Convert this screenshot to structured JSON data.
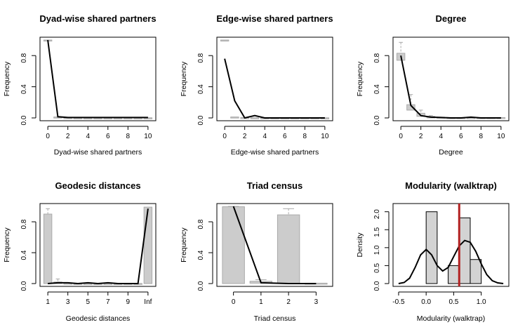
{
  "chart_data": [
    {
      "type": "bar",
      "title": "Dyad-wise shared partners",
      "xlabel": "Dyad-wise shared partners",
      "ylabel": "Frequency",
      "xlim": [
        -0.5,
        10.5
      ],
      "ylim": [
        0,
        1.0
      ],
      "x_ticks": [
        "0",
        "2",
        "4",
        "6",
        "8",
        "10"
      ],
      "y_ticks": [
        "0.0",
        "0.4",
        "0.8"
      ],
      "x": [
        0,
        1,
        2,
        3,
        4,
        5,
        6,
        7,
        8,
        9,
        10
      ],
      "boxes": [
        [
          0.99,
          1.0
        ],
        [
          0.0,
          0.012
        ],
        [
          0.0,
          0.005
        ],
        [
          0.0,
          0.003
        ],
        [
          0.0,
          0.002
        ],
        [
          0.0,
          0.002
        ],
        [
          0.0,
          0.002
        ],
        [
          0.0,
          0.002
        ],
        [
          0.0,
          0.002
        ],
        [
          0.0,
          0.002
        ],
        [
          0.0,
          0.002
        ]
      ],
      "observed": [
        1.0,
        0.015,
        0.005,
        0.005,
        0.005,
        0.005,
        0.005,
        0.005,
        0.005,
        0.005,
        0.005
      ]
    },
    {
      "type": "bar",
      "title": "Edge-wise shared partners",
      "xlabel": "Edge-wise shared partners",
      "ylabel": "Frequency",
      "xlim": [
        -0.5,
        10.5
      ],
      "ylim": [
        0,
        1.0
      ],
      "x_ticks": [
        "0",
        "2",
        "4",
        "6",
        "8",
        "10"
      ],
      "y_ticks": [
        "0.0",
        "0.4",
        "0.8"
      ],
      "x": [
        0,
        1,
        2,
        3,
        4,
        5,
        6,
        7,
        8,
        9,
        10
      ],
      "boxes": [
        [
          0.99,
          1.0
        ],
        [
          0.0,
          0.012
        ],
        [
          0.0,
          0.005
        ],
        [
          0.0,
          0.003
        ],
        [
          0.0,
          0.002
        ],
        [
          0.0,
          0.002
        ],
        [
          0.0,
          0.002
        ],
        [
          0.0,
          0.002
        ],
        [
          0.0,
          0.002
        ],
        [
          0.0,
          0.002
        ],
        [
          0.0,
          0.002
        ]
      ],
      "observed": [
        0.76,
        0.22,
        0.0,
        0.03,
        0.0,
        0.0,
        0.0,
        0.0,
        0.0,
        0.0,
        0.0
      ]
    },
    {
      "type": "bar",
      "title": "Degree",
      "xlabel": "Degree",
      "ylabel": "Frequency",
      "xlim": [
        -0.5,
        10.5
      ],
      "ylim": [
        0,
        1.0
      ],
      "x_ticks": [
        "0",
        "2",
        "4",
        "6",
        "8",
        "10"
      ],
      "y_ticks": [
        "0.0",
        "0.4",
        "0.8"
      ],
      "x": [
        0,
        1,
        2,
        3,
        4,
        5,
        6,
        7,
        8,
        9,
        10
      ],
      "boxes": [
        [
          0.74,
          0.83
        ],
        [
          0.1,
          0.17
        ],
        [
          0.02,
          0.06
        ],
        [
          0.0,
          0.02
        ],
        [
          0.0,
          0.01
        ],
        [
          0.0,
          0.005
        ],
        [
          0.0,
          0.005
        ],
        [
          0.0,
          0.005
        ],
        [
          0.0,
          0.005
        ],
        [
          0.0,
          0.005
        ],
        [
          0.0,
          0.005
        ]
      ],
      "whiskers": [
        [
          0.7,
          0.97
        ],
        [
          0.05,
          0.3
        ],
        [
          0.0,
          0.1
        ],
        [
          0.0,
          0.03
        ],
        null,
        null,
        null,
        null,
        null,
        null,
        null
      ],
      "observed": [
        0.8,
        0.16,
        0.03,
        0.01,
        0.005,
        0.0,
        0.0,
        0.01,
        0.0,
        0.0,
        0.0
      ]
    },
    {
      "type": "bar",
      "title": "Geodesic distances",
      "xlabel": "Geodesic distances",
      "ylabel": "Frequency",
      "xlim": [
        0.5,
        11.5
      ],
      "ylim": [
        0,
        1.0
      ],
      "x_ticks": [
        "1",
        "3",
        "5",
        "7",
        "9",
        "Inf"
      ],
      "x_tick_positions": [
        1,
        3,
        5,
        7,
        9,
        11
      ],
      "y_ticks": [
        "0.0",
        "0.4",
        "0.8"
      ],
      "x": [
        1,
        2,
        3,
        4,
        5,
        6,
        7,
        8,
        9,
        10,
        11
      ],
      "boxes": [
        [
          0.0,
          0.9
        ],
        [
          0.0,
          0.02
        ],
        [
          0.0,
          0.005
        ],
        [
          0.0,
          0.003
        ],
        [
          0.0,
          0.002
        ],
        [
          0.0,
          0.002
        ],
        [
          0.0,
          0.002
        ],
        [
          0.0,
          0.002
        ],
        [
          0.0,
          0.002
        ],
        [
          0.0,
          0.002
        ],
        [
          0.0,
          0.99
        ]
      ],
      "whiskers": [
        [
          0.0,
          0.97
        ],
        [
          0.0,
          0.06
        ],
        null,
        null,
        null,
        null,
        null,
        null,
        null,
        null,
        null
      ],
      "observed": [
        0.0,
        0.01,
        0.01,
        0.0,
        0.01,
        0.0,
        0.01,
        0.0,
        0.0,
        0.0,
        0.97
      ]
    },
    {
      "type": "bar",
      "title": "Triad census",
      "xlabel": "Triad census",
      "ylabel": "Frequency",
      "xlim": [
        -0.5,
        3.5
      ],
      "ylim": [
        0,
        1.0
      ],
      "x_ticks": [
        "0",
        "1",
        "2",
        "3"
      ],
      "y_ticks": [
        "0.0",
        "0.4",
        "0.8"
      ],
      "x": [
        0,
        1,
        2,
        3
      ],
      "boxes": [
        [
          0.0,
          0.995
        ],
        [
          0.005,
          0.03
        ],
        [
          0.0,
          0.89
        ],
        [
          0.0,
          0.005
        ]
      ],
      "whiskers": [
        [
          0.0,
          1.0
        ],
        [
          0.0,
          0.05
        ],
        [
          0.0,
          0.97
        ],
        null
      ],
      "observed": [
        1.0,
        0.01,
        0.0,
        0.0
      ]
    },
    {
      "type": "bar",
      "title": "Modularity (walktrap)",
      "xlabel": "Modularity (walktrap)",
      "ylabel": "Density",
      "xlim": [
        -0.55,
        1.45
      ],
      "ylim": [
        0,
        2.15
      ],
      "x_ticks": [
        "-0.5",
        "0.0",
        "0.5",
        "1.0"
      ],
      "y_ticks": [
        "0.0",
        "0.5",
        "1.0",
        "1.5",
        "2.0"
      ],
      "histogram": {
        "bins": [
          [
            0.0,
            0.2
          ],
          [
            0.2,
            0.4
          ],
          [
            0.4,
            0.6
          ],
          [
            0.6,
            0.8
          ],
          [
            0.8,
            1.0
          ]
        ],
        "density": [
          2.0,
          0.0,
          0.5,
          1.83,
          0.67
        ]
      },
      "density_curve": {
        "x": [
          -0.5,
          -0.4,
          -0.3,
          -0.2,
          -0.1,
          0.0,
          0.1,
          0.2,
          0.3,
          0.4,
          0.5,
          0.6,
          0.7,
          0.8,
          0.9,
          1.0,
          1.1,
          1.2,
          1.3,
          1.4
        ],
        "y": [
          0.0,
          0.03,
          0.15,
          0.45,
          0.8,
          0.95,
          0.8,
          0.5,
          0.35,
          0.45,
          0.75,
          1.05,
          1.2,
          1.15,
          0.9,
          0.55,
          0.25,
          0.08,
          0.02,
          0.0
        ]
      },
      "observed_value": 0.6,
      "observed_color": "#b22222"
    }
  ]
}
